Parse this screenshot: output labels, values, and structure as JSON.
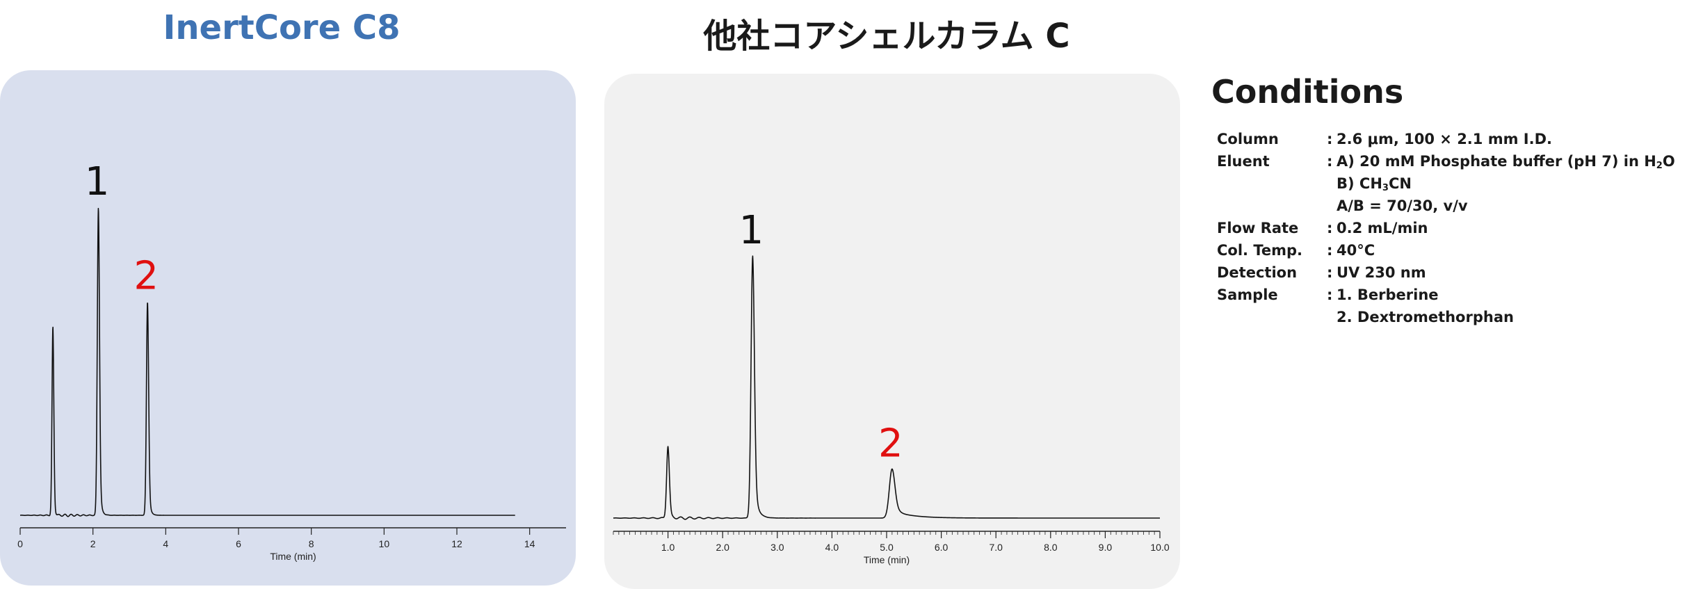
{
  "titles": {
    "left": "InertCore C8",
    "right": "他社コアシェルカラム C"
  },
  "conditions": {
    "heading": "Conditions",
    "rows": [
      {
        "label": "Column",
        "lines": [
          "2.6 μm, 100 × 2.1 mm I.D."
        ]
      },
      {
        "label": "Eluent",
        "lines": [
          "A) 20 mM  Phosphate buffer (pH 7) in H",
          "B) CH",
          "A/B = 70/30, v/v"
        ]
      },
      {
        "label": "Flow Rate",
        "lines": [
          "0.2 mL/min"
        ]
      },
      {
        "label": "Col. Temp.",
        "lines": [
          "40°C"
        ]
      },
      {
        "label": "Detection",
        "lines": [
          "UV 230 nm"
        ]
      },
      {
        "label": "Sample",
        "lines": [
          "1. Berberine",
          "2. Dextromethorphan"
        ]
      }
    ],
    "eluent_suffix": {
      "h2o_sub": "2",
      "h2o_tail": "O",
      "ch3cn_sub": "3",
      "ch3cn_tail": "CN"
    }
  },
  "chart_data": [
    {
      "type": "line",
      "panel": "left",
      "title": "InertCore C8",
      "xlabel": "Time (min)",
      "ylabel": "",
      "xlim": [
        0,
        15
      ],
      "ylim": [
        0,
        1
      ],
      "xticks": [
        0,
        2,
        4,
        6,
        8,
        10,
        12,
        14
      ],
      "xtick_labels": [
        "0",
        "2",
        "4",
        "6",
        "8",
        "10",
        "12",
        "14"
      ],
      "minor_ticks": false,
      "trace_end": 13.6,
      "peaks": [
        {
          "t": 0.9,
          "height": 0.6,
          "width": 0.025,
          "tail": 0.03,
          "label": ""
        },
        {
          "t": 2.15,
          "height": 0.98,
          "width": 0.03,
          "tail": 0.05,
          "label": "1",
          "label_color": "#111111"
        },
        {
          "t": 3.5,
          "height": 0.68,
          "width": 0.03,
          "tail": 0.05,
          "label": "2",
          "label_color": "#e01010"
        }
      ],
      "color": "#111111",
      "grid": false
    },
    {
      "type": "line",
      "panel": "right",
      "title": "他社コアシェルカラム C",
      "xlabel": "Time (min)",
      "ylabel": "",
      "xlim": [
        0,
        10
      ],
      "ylim": [
        0,
        1
      ],
      "xticks": [
        1,
        2,
        3,
        4,
        5,
        6,
        7,
        8,
        9,
        10
      ],
      "xtick_labels": [
        "1.0",
        "2.0",
        "3.0",
        "4.0",
        "5.0",
        "6.0",
        "7.0",
        "8.0",
        "9.0",
        "10.0"
      ],
      "minor_ticks": true,
      "trace_end": 10.0,
      "peaks": [
        {
          "t": 1.0,
          "height": 0.22,
          "width": 0.025,
          "tail": 0.04,
          "label": ""
        },
        {
          "t": 2.55,
          "height": 0.8,
          "width": 0.03,
          "tail": 0.07,
          "label": "1",
          "label_color": "#111111"
        },
        {
          "t": 5.1,
          "height": 0.15,
          "width": 0.05,
          "tail": 0.35,
          "label": "2",
          "label_color": "#e01010"
        }
      ],
      "color": "#111111",
      "grid": false
    }
  ]
}
